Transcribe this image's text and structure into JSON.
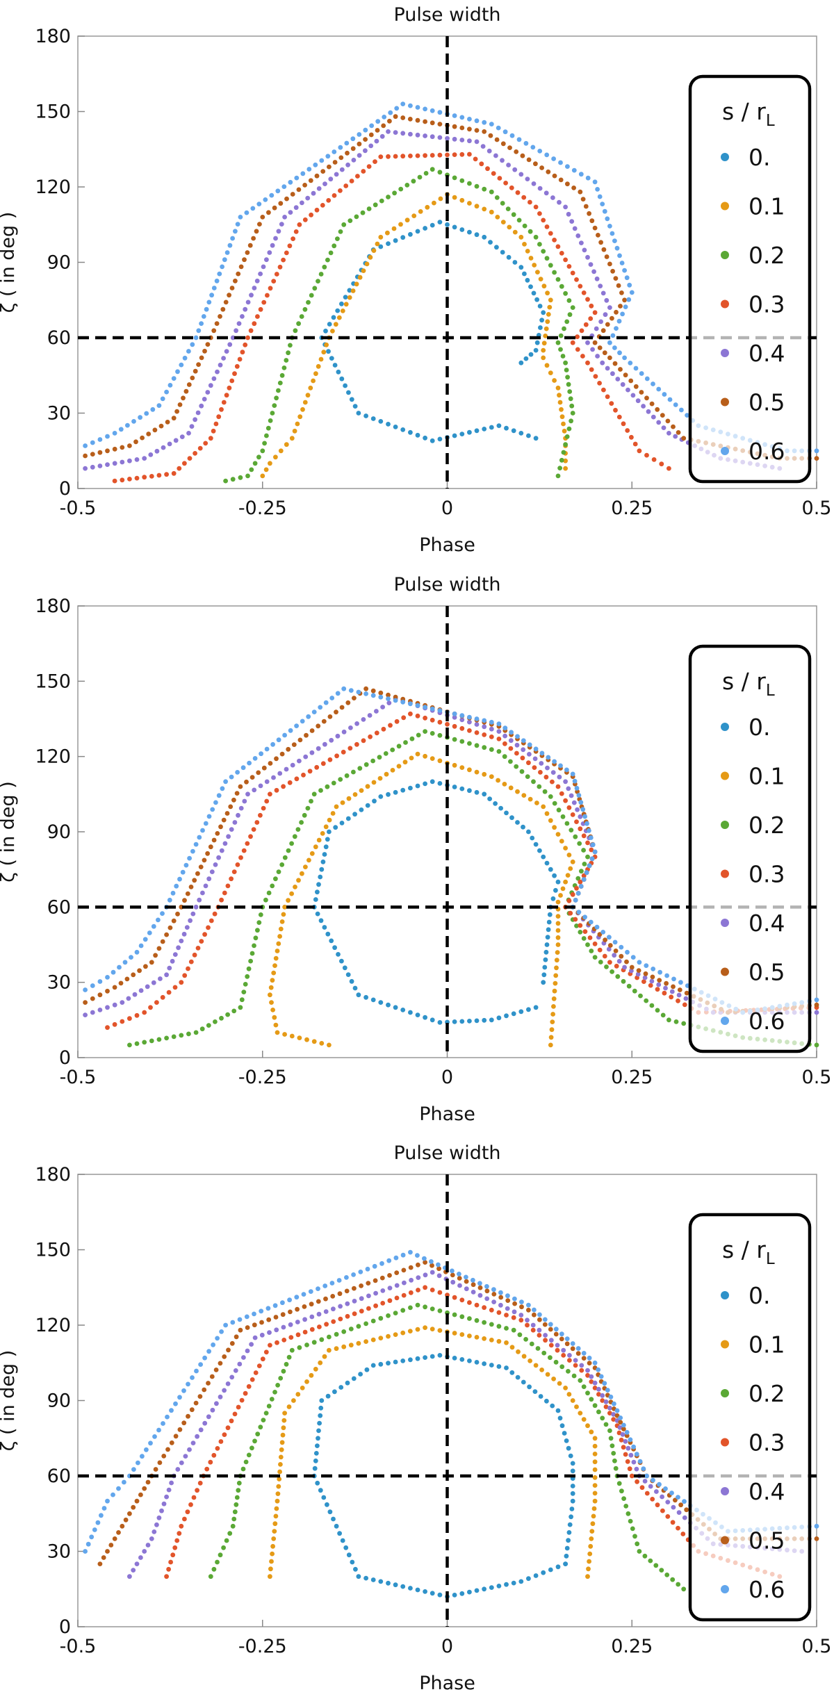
{
  "chart_data": [
    {
      "type": "scatter",
      "title": "Pulse width",
      "xlabel": "Phase",
      "ylabel": "ζ ( in deg )",
      "xlim": [
        -0.5,
        0.5
      ],
      "ylim": [
        0,
        180
      ],
      "xticks": [
        "-0.5",
        "-0.25",
        "0",
        "0.25",
        "0.5"
      ],
      "yticks": [
        "0",
        "30",
        "60",
        "90",
        "120",
        "150",
        "180"
      ],
      "reference_lines": [
        {
          "orientation": "horizontal",
          "value": 60
        },
        {
          "orientation": "vertical",
          "value": 0
        }
      ],
      "legend": {
        "title": "s / rL",
        "title_main": "s / r",
        "title_sub": "L",
        "position": "right"
      },
      "series": [
        {
          "name": "0.",
          "color": "#2f92c9",
          "x": [
            0.12,
            0.07,
            -0.02,
            -0.12,
            -0.17,
            -0.1,
            -0.01,
            0.05,
            0.1,
            0.13,
            0.12,
            0.1
          ],
          "y": [
            20,
            25,
            19,
            30,
            60,
            95,
            106,
            100,
            88,
            70,
            55,
            50
          ]
        },
        {
          "name": "0.1",
          "color": "#e59a16",
          "x": [
            -0.25,
            -0.24,
            -0.21,
            -0.16,
            -0.09,
            0.0,
            0.06,
            0.1,
            0.14,
            0.13,
            0.13,
            0.15,
            0.16,
            0.16
          ],
          "y": [
            5,
            10,
            20,
            60,
            100,
            117,
            110,
            100,
            75,
            55,
            52,
            40,
            20,
            8
          ]
        },
        {
          "name": "0.2",
          "color": "#5aa835",
          "x": [
            -0.3,
            -0.27,
            -0.25,
            -0.21,
            -0.14,
            -0.02,
            0.06,
            0.12,
            0.17,
            0.15,
            0.16,
            0.17,
            0.15
          ],
          "y": [
            3,
            5,
            15,
            60,
            105,
            127,
            118,
            100,
            72,
            58,
            50,
            30,
            5
          ]
        },
        {
          "name": "0.3",
          "color": "#e2542a",
          "x": [
            -0.45,
            -0.37,
            -0.32,
            -0.27,
            -0.2,
            -0.09,
            0.03,
            0.12,
            0.2,
            0.17,
            0.19,
            0.26,
            0.3
          ],
          "y": [
            3,
            6,
            20,
            60,
            105,
            132,
            133,
            112,
            70,
            58,
            50,
            15,
            8
          ]
        },
        {
          "name": "0.4",
          "color": "#8c76d4",
          "x": [
            -0.49,
            -0.41,
            -0.35,
            -0.29,
            -0.22,
            -0.08,
            0.04,
            0.16,
            0.22,
            0.19,
            0.21,
            0.3,
            0.37,
            0.45
          ],
          "y": [
            8,
            12,
            22,
            60,
            108,
            142,
            138,
            112,
            72,
            58,
            50,
            22,
            12,
            8
          ]
        },
        {
          "name": "0.5",
          "color": "#b85e1a",
          "x": [
            -0.49,
            -0.43,
            -0.37,
            -0.32,
            -0.25,
            -0.07,
            0.05,
            0.18,
            0.24,
            0.2,
            0.22,
            0.32,
            0.45,
            0.5
          ],
          "y": [
            13,
            17,
            28,
            60,
            108,
            148,
            142,
            118,
            75,
            58,
            52,
            20,
            12,
            12
          ]
        },
        {
          "name": "0.6",
          "color": "#62a6ec",
          "x": [
            -0.49,
            -0.45,
            -0.39,
            -0.34,
            -0.28,
            -0.06,
            0.06,
            0.2,
            0.25,
            0.22,
            0.24,
            0.34,
            0.46,
            0.5
          ],
          "y": [
            17,
            22,
            33,
            60,
            108,
            153,
            145,
            122,
            78,
            58,
            52,
            25,
            15,
            15
          ]
        }
      ]
    },
    {
      "type": "scatter",
      "title": "Pulse width",
      "xlabel": "Phase",
      "ylabel": "ζ ( in deg )",
      "xlim": [
        -0.5,
        0.5
      ],
      "ylim": [
        0,
        180
      ],
      "xticks": [
        "-0.5",
        "-0.25",
        "0",
        "0.25",
        "0.5"
      ],
      "yticks": [
        "0",
        "30",
        "60",
        "90",
        "120",
        "150",
        "180"
      ],
      "reference_lines": [
        {
          "orientation": "horizontal",
          "value": 60
        },
        {
          "orientation": "vertical",
          "value": 0
        }
      ],
      "legend": {
        "title": "s / rL",
        "title_main": "s / r",
        "title_sub": "L",
        "position": "right"
      },
      "series": [
        {
          "name": "0.",
          "color": "#2f92c9",
          "x": [
            0.12,
            0.06,
            -0.01,
            -0.12,
            -0.18,
            -0.16,
            -0.09,
            -0.02,
            0.05,
            0.11,
            0.15,
            0.14,
            0.13
          ],
          "y": [
            20,
            15,
            14,
            25,
            60,
            90,
            104,
            110,
            105,
            90,
            70,
            60,
            30
          ]
        },
        {
          "name": "0.1",
          "color": "#e59a16",
          "x": [
            -0.16,
            -0.23,
            -0.24,
            -0.22,
            -0.15,
            -0.04,
            0.06,
            0.13,
            0.17,
            0.15,
            0.15,
            0.14
          ],
          "y": [
            5,
            10,
            25,
            60,
            100,
            121,
            112,
            100,
            78,
            62,
            45,
            5
          ]
        },
        {
          "name": "0.2",
          "color": "#5aa835",
          "x": [
            -0.43,
            -0.34,
            -0.28,
            -0.25,
            -0.18,
            -0.03,
            0.07,
            0.14,
            0.19,
            0.16,
            0.2,
            0.3,
            0.4,
            0.5
          ],
          "y": [
            5,
            10,
            20,
            60,
            105,
            130,
            122,
            104,
            80,
            60,
            40,
            15,
            8,
            5
          ]
        },
        {
          "name": "0.3",
          "color": "#e2542a",
          "x": [
            -0.46,
            -0.41,
            -0.36,
            -0.31,
            -0.24,
            -0.05,
            0.07,
            0.15,
            0.2,
            0.16,
            0.22,
            0.34,
            0.5
          ],
          "y": [
            12,
            18,
            30,
            60,
            105,
            137,
            127,
            108,
            80,
            60,
            38,
            18,
            20
          ]
        },
        {
          "name": "0.4",
          "color": "#8c76d4",
          "x": [
            -0.49,
            -0.44,
            -0.38,
            -0.34,
            -0.27,
            -0.07,
            0.07,
            0.16,
            0.2,
            0.17,
            0.24,
            0.36,
            0.5
          ],
          "y": [
            17,
            22,
            33,
            60,
            105,
            143,
            130,
            110,
            82,
            60,
            36,
            18,
            18
          ]
        },
        {
          "name": "0.5",
          "color": "#b85e1a",
          "x": [
            -0.49,
            -0.45,
            -0.4,
            -0.36,
            -0.28,
            -0.11,
            0.07,
            0.17,
            0.2,
            0.17,
            0.25,
            0.38,
            0.5
          ],
          "y": [
            22,
            28,
            38,
            60,
            108,
            147,
            132,
            112,
            82,
            60,
            36,
            18,
            21
          ]
        },
        {
          "name": "0.6",
          "color": "#62a6ec",
          "x": [
            -0.49,
            -0.46,
            -0.42,
            -0.38,
            -0.3,
            -0.14,
            0.07,
            0.17,
            0.2,
            0.17,
            0.26,
            0.4,
            0.5
          ],
          "y": [
            27,
            32,
            42,
            60,
            110,
            147,
            133,
            113,
            82,
            60,
            38,
            18,
            23
          ]
        }
      ]
    },
    {
      "type": "scatter",
      "title": "Pulse width",
      "xlabel": "Phase",
      "ylabel": "ζ ( in deg )",
      "xlim": [
        -0.5,
        0.5
      ],
      "ylim": [
        0,
        180
      ],
      "xticks": [
        "-0.5",
        "-0.25",
        "0",
        "0.25",
        "0.5"
      ],
      "yticks": [
        "0",
        "30",
        "60",
        "90",
        "120",
        "150",
        "180"
      ],
      "reference_lines": [
        {
          "orientation": "horizontal",
          "value": 60
        },
        {
          "orientation": "vertical",
          "value": 0
        }
      ],
      "legend": {
        "title": "s / rL",
        "title_main": "s / r",
        "title_sub": "L",
        "position": "right"
      },
      "series": [
        {
          "name": "0.",
          "color": "#2f92c9",
          "x": [
            0.16,
            0.1,
            0.0,
            -0.12,
            -0.18,
            -0.17,
            -0.1,
            -0.01,
            0.08,
            0.15,
            0.17,
            0.17,
            0.16
          ],
          "y": [
            25,
            18,
            12,
            20,
            60,
            90,
            104,
            108,
            103,
            86,
            65,
            50,
            25
          ]
        },
        {
          "name": "0.1",
          "color": "#e59a16",
          "x": [
            -0.24,
            -0.23,
            -0.22,
            -0.16,
            -0.03,
            0.08,
            0.16,
            0.2,
            0.2,
            0.19
          ],
          "y": [
            20,
            50,
            85,
            110,
            119,
            113,
            95,
            75,
            50,
            20
          ]
        },
        {
          "name": "0.2",
          "color": "#5aa835",
          "x": [
            -0.32,
            -0.29,
            -0.28,
            -0.21,
            -0.04,
            0.09,
            0.18,
            0.22,
            0.23,
            0.26,
            0.32
          ],
          "y": [
            20,
            40,
            60,
            110,
            128,
            118,
            98,
            78,
            60,
            30,
            15
          ]
        },
        {
          "name": "0.3",
          "color": "#e2542a",
          "x": [
            -0.38,
            -0.36,
            -0.33,
            -0.24,
            -0.03,
            0.1,
            0.19,
            0.23,
            0.25,
            0.34,
            0.45
          ],
          "y": [
            20,
            40,
            60,
            112,
            135,
            122,
            100,
            80,
            60,
            30,
            20
          ]
        },
        {
          "name": "0.4",
          "color": "#8c76d4",
          "x": [
            -0.43,
            -0.4,
            -0.37,
            -0.26,
            -0.02,
            0.1,
            0.19,
            0.23,
            0.26,
            0.36,
            0.48
          ],
          "y": [
            20,
            35,
            60,
            115,
            141,
            124,
            102,
            82,
            60,
            33,
            30
          ]
        },
        {
          "name": "0.5",
          "color": "#b85e1a",
          "x": [
            -0.47,
            -0.44,
            -0.4,
            -0.28,
            -0.03,
            0.11,
            0.2,
            0.23,
            0.27,
            0.37,
            0.5
          ],
          "y": [
            25,
            40,
            60,
            118,
            145,
            126,
            103,
            84,
            60,
            35,
            35
          ]
        },
        {
          "name": "0.6",
          "color": "#62a6ec",
          "x": [
            -0.49,
            -0.46,
            -0.43,
            -0.3,
            -0.05,
            0.11,
            0.2,
            0.23,
            0.27,
            0.38,
            0.5
          ],
          "y": [
            30,
            50,
            60,
            120,
            149,
            128,
            105,
            86,
            60,
            38,
            40
          ]
        }
      ]
    }
  ]
}
